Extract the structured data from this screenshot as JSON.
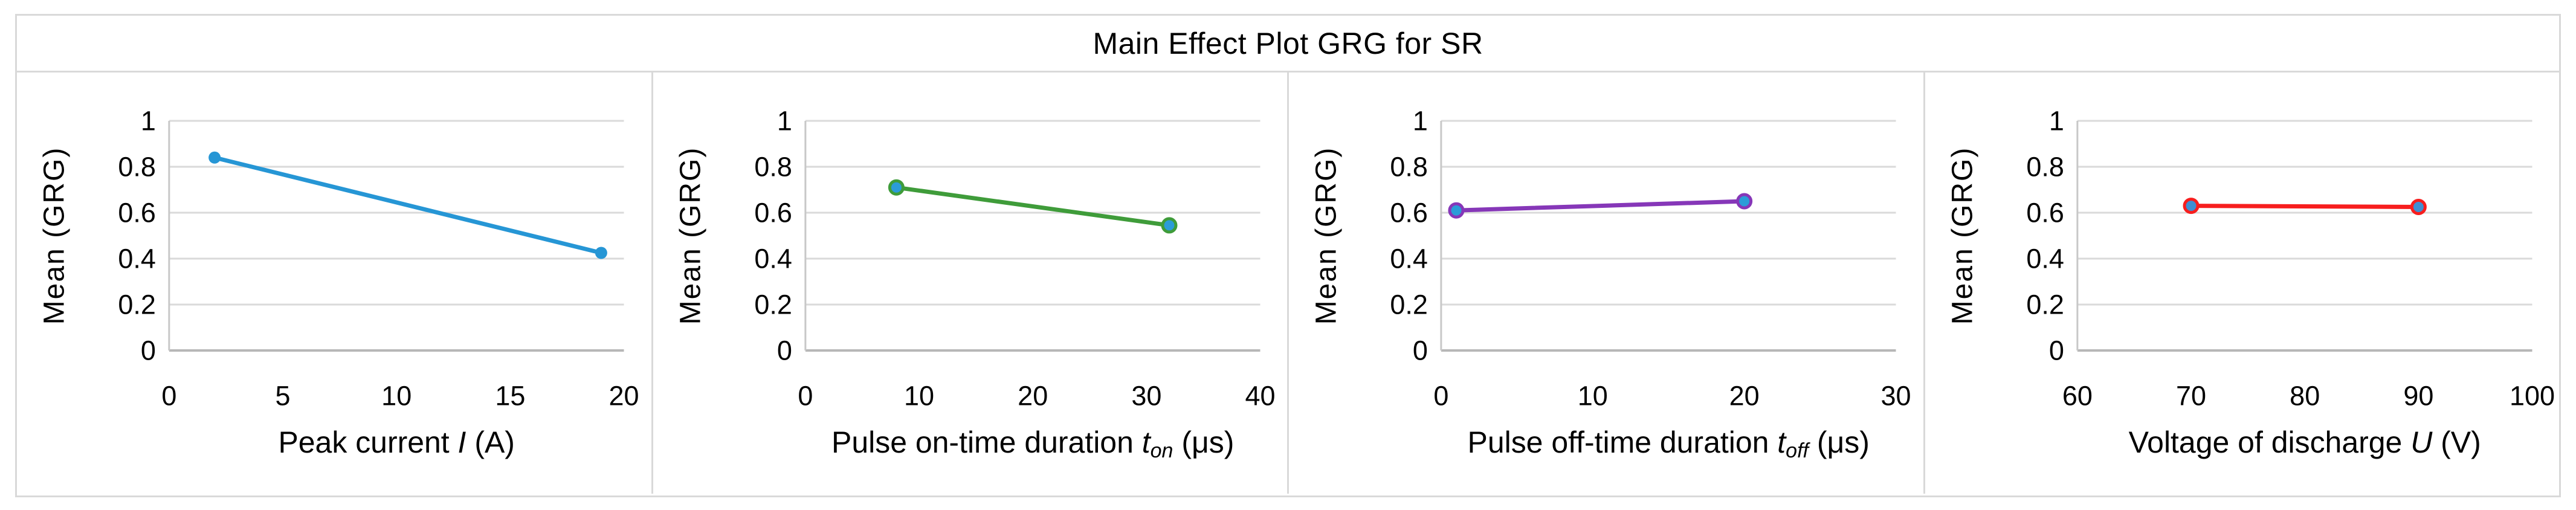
{
  "title": "Main Effect Plot GRG for SR",
  "ylabel": "Mean (GRG)",
  "colors": {
    "frame_border": "#D9D9D9",
    "gridline": "#DADADA",
    "x_axis_line": "#B7B7B7",
    "y_axis_line": "#C8C8C8",
    "text": "#000000",
    "blue": "#2696D5",
    "green": "#3F9C3A",
    "purple": "#8637B8",
    "red": "#F71E1E"
  },
  "chart_data": [
    {
      "type": "line",
      "name": "peak-current",
      "title": "",
      "xlabel_text": "Peak current I (A)",
      "xlabel_parts": [
        {
          "t": "Peak current ",
          "s": "n"
        },
        {
          "t": "I",
          "s": "i"
        },
        {
          "t": " (A)",
          "s": "n"
        }
      ],
      "ylabel": "Mean (GRG)",
      "x": [
        2,
        19
      ],
      "y": [
        0.84,
        0.425
      ],
      "xlim": [
        0,
        20
      ],
      "xticks": [
        0,
        5,
        10,
        15,
        20
      ],
      "xtick_labels": [
        "0",
        "5",
        "10",
        "15",
        "20"
      ],
      "ylim": [
        0,
        1
      ],
      "yticks": [
        0,
        0.2,
        0.4,
        0.6,
        0.8,
        1
      ],
      "ytick_labels": [
        "0",
        "0.2",
        "0.4",
        "0.6",
        "0.8",
        "1"
      ],
      "grid": "horizontal",
      "legend": "none",
      "line_color": "#2696D5",
      "marker_fill": "#2696D5",
      "marker_stroke": "#2696D5"
    },
    {
      "type": "line",
      "name": "pulse-on-time",
      "title": "",
      "xlabel_text": "Pulse on-time duration ton (μs)",
      "xlabel_parts": [
        {
          "t": "Pulse on-time duration ",
          "s": "n"
        },
        {
          "t": "t",
          "s": "i"
        },
        {
          "t": "on",
          "s": "sub"
        },
        {
          "t": " (μs)",
          "s": "n"
        }
      ],
      "ylabel": "Mean (GRG)",
      "x": [
        8,
        32
      ],
      "y": [
        0.71,
        0.545
      ],
      "xlim": [
        0,
        40
      ],
      "xticks": [
        0,
        10,
        20,
        30,
        40
      ],
      "xtick_labels": [
        "0",
        "10",
        "20",
        "30",
        "40"
      ],
      "ylim": [
        0,
        1
      ],
      "yticks": [
        0,
        0.2,
        0.4,
        0.6,
        0.8,
        1
      ],
      "ytick_labels": [
        "0",
        "0.2",
        "0.4",
        "0.6",
        "0.8",
        "1"
      ],
      "grid": "horizontal",
      "legend": "none",
      "line_color": "#3F9C3A",
      "marker_fill": "#2B9CD8",
      "marker_stroke": "#3F9C3A"
    },
    {
      "type": "line",
      "name": "pulse-off-time",
      "title": "",
      "xlabel_text": "Pulse off-time duration toff (μs)",
      "xlabel_parts": [
        {
          "t": "Pulse off-time duration ",
          "s": "n"
        },
        {
          "t": "t",
          "s": "i"
        },
        {
          "t": "off",
          "s": "sub"
        },
        {
          "t": " (μs)",
          "s": "n"
        }
      ],
      "ylabel": "Mean (GRG)",
      "x": [
        1,
        20
      ],
      "y": [
        0.61,
        0.65
      ],
      "xlim": [
        0,
        30
      ],
      "xticks": [
        0,
        10,
        20,
        30
      ],
      "xtick_labels": [
        "0",
        "10",
        "20",
        "30"
      ],
      "ylim": [
        0,
        1
      ],
      "yticks": [
        0,
        0.2,
        0.4,
        0.6,
        0.8,
        1
      ],
      "ytick_labels": [
        "0",
        "0.2",
        "0.4",
        "0.6",
        "0.8",
        "1"
      ],
      "grid": "horizontal",
      "legend": "none",
      "line_color": "#8637B8",
      "marker_fill": "#2B9CD8",
      "marker_stroke": "#8637B8"
    },
    {
      "type": "line",
      "name": "voltage-of-discharge",
      "title": "",
      "xlabel_text": "Voltage of discharge U (V)",
      "xlabel_parts": [
        {
          "t": "Voltage of discharge ",
          "s": "n"
        },
        {
          "t": "U",
          "s": "i"
        },
        {
          "t": " (V)",
          "s": "n"
        }
      ],
      "ylabel": "Mean (GRG)",
      "x": [
        70,
        90
      ],
      "y": [
        0.63,
        0.625
      ],
      "xlim": [
        60,
        100
      ],
      "xticks": [
        60,
        70,
        80,
        90,
        100
      ],
      "xtick_labels": [
        "60",
        "70",
        "80",
        "90",
        "100"
      ],
      "ylim": [
        0,
        1
      ],
      "yticks": [
        0,
        0.2,
        0.4,
        0.6,
        0.8,
        1
      ],
      "ytick_labels": [
        "0",
        "0.2",
        "0.4",
        "0.6",
        "0.8",
        "1"
      ],
      "grid": "horizontal",
      "legend": "none",
      "line_color": "#F71E1E",
      "marker_fill": "#3F8FD2",
      "marker_stroke": "#F71E1E"
    }
  ]
}
